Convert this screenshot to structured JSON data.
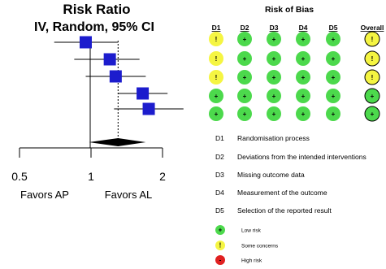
{
  "chart_data": {
    "type": "forest",
    "title": "Risk Ratio",
    "subtitle": "IV, Random, 95% CI",
    "scale": "log",
    "xlim": [
      0.5,
      2
    ],
    "xticks": [
      0.5,
      1,
      2
    ],
    "xtick_labels": [
      "0.5",
      "1",
      "2"
    ],
    "favors_left": "Favors AP",
    "favors_right": "Favors AL",
    "reference_line": 1,
    "pooled_line": 1.3,
    "studies": [
      {
        "estimate": 0.95,
        "lower": 0.7,
        "upper": 1.3
      },
      {
        "estimate": 1.2,
        "lower": 0.85,
        "upper": 1.6
      },
      {
        "estimate": 1.27,
        "lower": 0.95,
        "upper": 1.7
      },
      {
        "estimate": 1.65,
        "lower": 1.3,
        "upper": 2.1
      },
      {
        "estimate": 1.75,
        "lower": 1.25,
        "upper": 2.45
      }
    ],
    "pooled": {
      "estimate": 1.3,
      "lower": 0.98,
      "upper": 1.7
    }
  },
  "risk_of_bias": {
    "title": "Risk of Bias",
    "columns": [
      "D1",
      "D2",
      "D3",
      "D4",
      "D5",
      "Overall"
    ],
    "rows": [
      [
        "some",
        "low",
        "low",
        "low",
        "low",
        "some"
      ],
      [
        "some",
        "low",
        "low",
        "low",
        "low",
        "some"
      ],
      [
        "some",
        "low",
        "low",
        "low",
        "low",
        "some"
      ],
      [
        "low",
        "low",
        "low",
        "low",
        "low",
        "low"
      ],
      [
        "low",
        "low",
        "low",
        "low",
        "low",
        "low"
      ]
    ],
    "domains": [
      {
        "code": "D1",
        "text": "Randomisation process"
      },
      {
        "code": "D2",
        "text": "Deviations from the intended interventions"
      },
      {
        "code": "D3",
        "text": "Missing outcome data"
      },
      {
        "code": "D4",
        "text": "Measurement of the outcome"
      },
      {
        "code": "D5",
        "text": "Selection of the reported result"
      }
    ],
    "key": [
      {
        "level": "low",
        "symbol": "+",
        "text": "Low risk"
      },
      {
        "level": "some",
        "symbol": "!",
        "text": "Some concerns"
      },
      {
        "level": "high",
        "symbol": "-",
        "text": "High risk"
      }
    ],
    "colors": {
      "low": "#4cd94c",
      "some": "#f5f542",
      "high": "#e02020"
    }
  }
}
